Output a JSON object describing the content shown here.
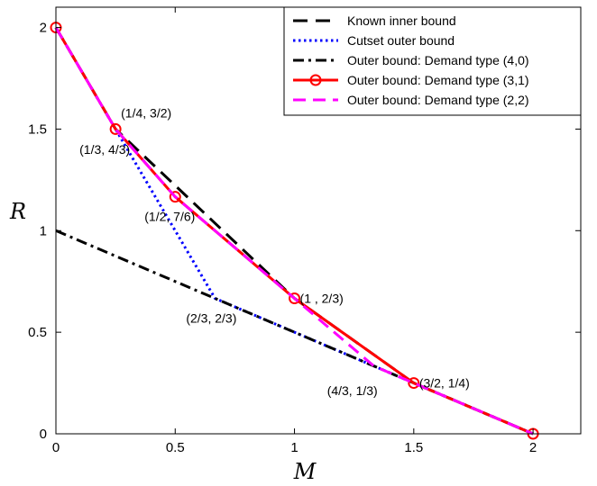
{
  "chart_data": {
    "type": "line",
    "title": "",
    "xlabel": "M",
    "ylabel": "R",
    "xlim": [
      0,
      2.2
    ],
    "ylim": [
      0,
      2.1
    ],
    "xticks": [
      0,
      0.5,
      1,
      1.5,
      2
    ],
    "xtick_labels": [
      "0",
      "0.5",
      "1",
      "1.5",
      "2"
    ],
    "yticks": [
      0,
      0.5,
      1,
      1.5,
      2
    ],
    "ytick_labels": [
      "0",
      "0.5",
      "1",
      "1.5",
      "2"
    ],
    "grid": false,
    "legend_position": "top-right",
    "series": [
      {
        "name": "Known inner bound",
        "color": "#000000",
        "dash": "long-dash",
        "marker": "none",
        "x": [
          0,
          0.25,
          1,
          1.5,
          2
        ],
        "y": [
          2,
          1.5,
          0.6667,
          0.25,
          0
        ]
      },
      {
        "name": "Cutset outer bound",
        "color": "#0000ff",
        "dash": "dotted",
        "marker": "none",
        "x": [
          0,
          0.3333,
          0.6667,
          2
        ],
        "y": [
          2,
          1.3333,
          0.6667,
          0
        ]
      },
      {
        "name": "Outer bound: Demand type (4,0)",
        "color": "#000000",
        "dash": "dash-dot",
        "marker": "none",
        "x": [
          0,
          2
        ],
        "y": [
          1,
          0
        ]
      },
      {
        "name": "Outer bound: Demand type (3,1)",
        "color": "#ff0000",
        "dash": "solid",
        "marker": "circle",
        "x": [
          0,
          0.25,
          0.5,
          1,
          1.5,
          2
        ],
        "y": [
          2,
          1.5,
          1.1667,
          0.6667,
          0.25,
          0
        ]
      },
      {
        "name": "Outer bound: Demand type (2,2)",
        "color": "#ff00ff",
        "dash": "dashed",
        "marker": "none",
        "x": [
          0,
          0.25,
          0.5,
          1,
          1.3333,
          1.5,
          2
        ],
        "y": [
          2,
          1.5,
          1.1667,
          0.6667,
          0.3333,
          0.25,
          0
        ]
      }
    ],
    "annotations": [
      {
        "text": "(1/4, 3/2)",
        "x": 0.25,
        "y": 1.5,
        "anchor": "start"
      },
      {
        "text": "(1/3, 4/3)",
        "x": 0.3333,
        "y": 1.3333,
        "anchor": "end"
      },
      {
        "text": "(1/2, 7/6)",
        "x": 0.5,
        "y": 1.1667,
        "anchor": "middle-below"
      },
      {
        "text": "(1  , 2/3)",
        "x": 1,
        "y": 0.6667,
        "anchor": "start"
      },
      {
        "text": "(2/3, 2/3)",
        "x": 0.6667,
        "y": 0.6667,
        "anchor": "below"
      },
      {
        "text": "(4/3, 1/3)",
        "x": 1.3333,
        "y": 0.3333,
        "anchor": "below-left"
      },
      {
        "text": "(3/2, 1/4)",
        "x": 1.5,
        "y": 0.25,
        "anchor": "start"
      }
    ]
  }
}
